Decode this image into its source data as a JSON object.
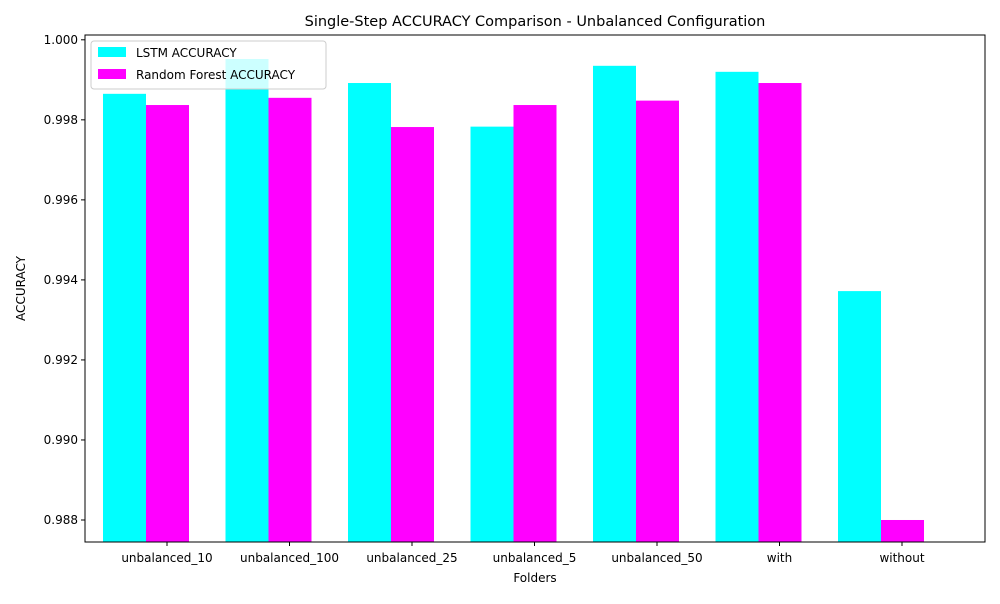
{
  "chart_data": {
    "type": "bar",
    "title": "Single-Step ACCURACY Comparison - Unbalanced Configuration",
    "xlabel": "Folders",
    "ylabel": "ACCURACY",
    "categories": [
      "unbalanced_10",
      "unbalanced_100",
      "unbalanced_25",
      "unbalanced_5",
      "unbalanced_50",
      "with",
      "without"
    ],
    "series": [
      {
        "name": "LSTM ACCURACY",
        "color": "#00ffff",
        "values": [
          0.99865,
          0.99952,
          0.99892,
          0.99783,
          0.99935,
          0.9992,
          0.99372
        ]
      },
      {
        "name": "Random Forest ACCURACY",
        "color": "#ff00ff",
        "values": [
          0.99837,
          0.99855,
          0.99782,
          0.99837,
          0.99848,
          0.99892,
          0.988
        ]
      }
    ],
    "ylim": [
      0.98745,
      1.00012
    ],
    "yticks": [
      "0.988",
      "0.990",
      "0.992",
      "0.994",
      "0.996",
      "0.998",
      "1.000"
    ],
    "ytick_values": [
      0.988,
      0.99,
      0.992,
      0.994,
      0.996,
      0.998,
      1.0
    ],
    "legend_position": "upper left",
    "grid": false
  }
}
